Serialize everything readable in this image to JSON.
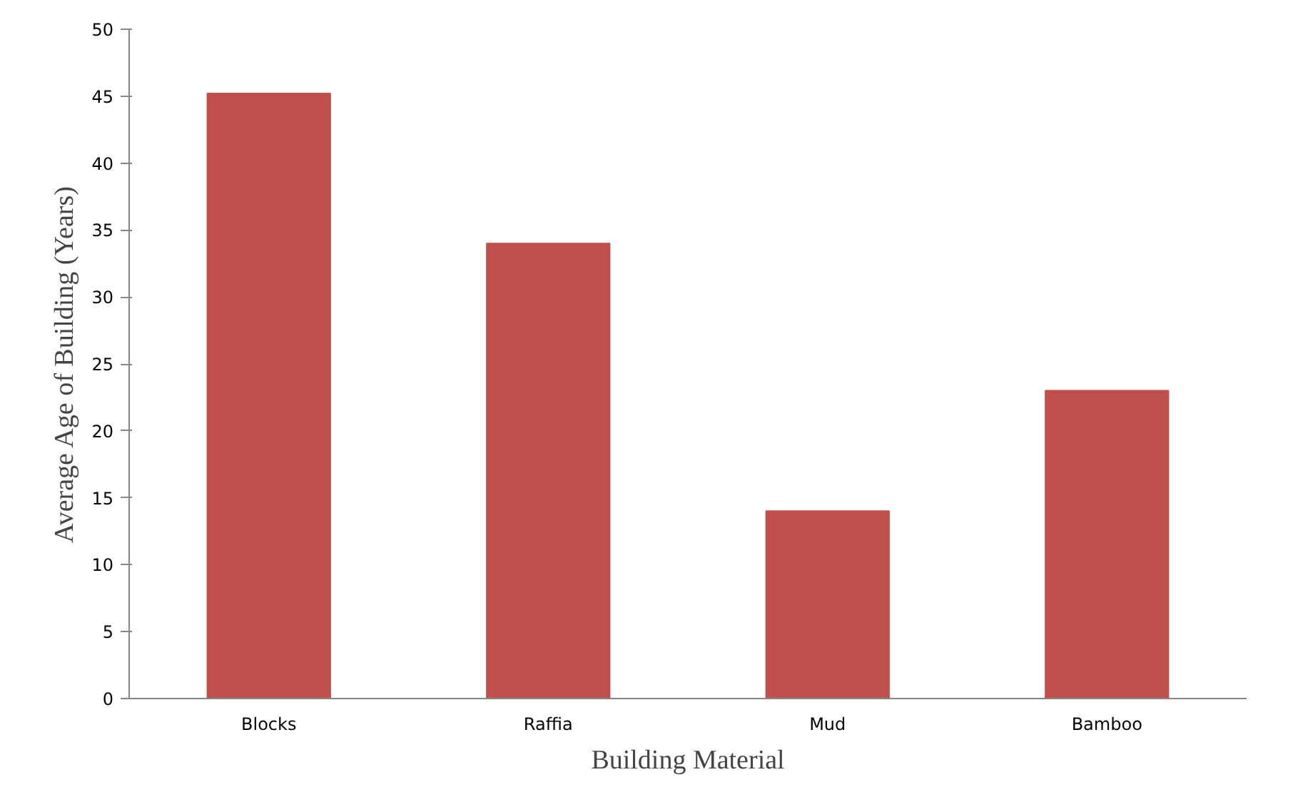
{
  "chart_data": {
    "type": "bar",
    "xlabel": "Building Material",
    "ylabel": "Average Age of Building (Years)",
    "categories": [
      "Blocks",
      "Raffia",
      "Mud",
      "Bamboo"
    ],
    "values": [
      45.2,
      34,
      14,
      23
    ],
    "color": "#c0504d",
    "ylim": [
      0,
      50
    ],
    "yticks": [
      0,
      5,
      10,
      15,
      20,
      25,
      30,
      35,
      40,
      45,
      50
    ],
    "grid": false
  }
}
